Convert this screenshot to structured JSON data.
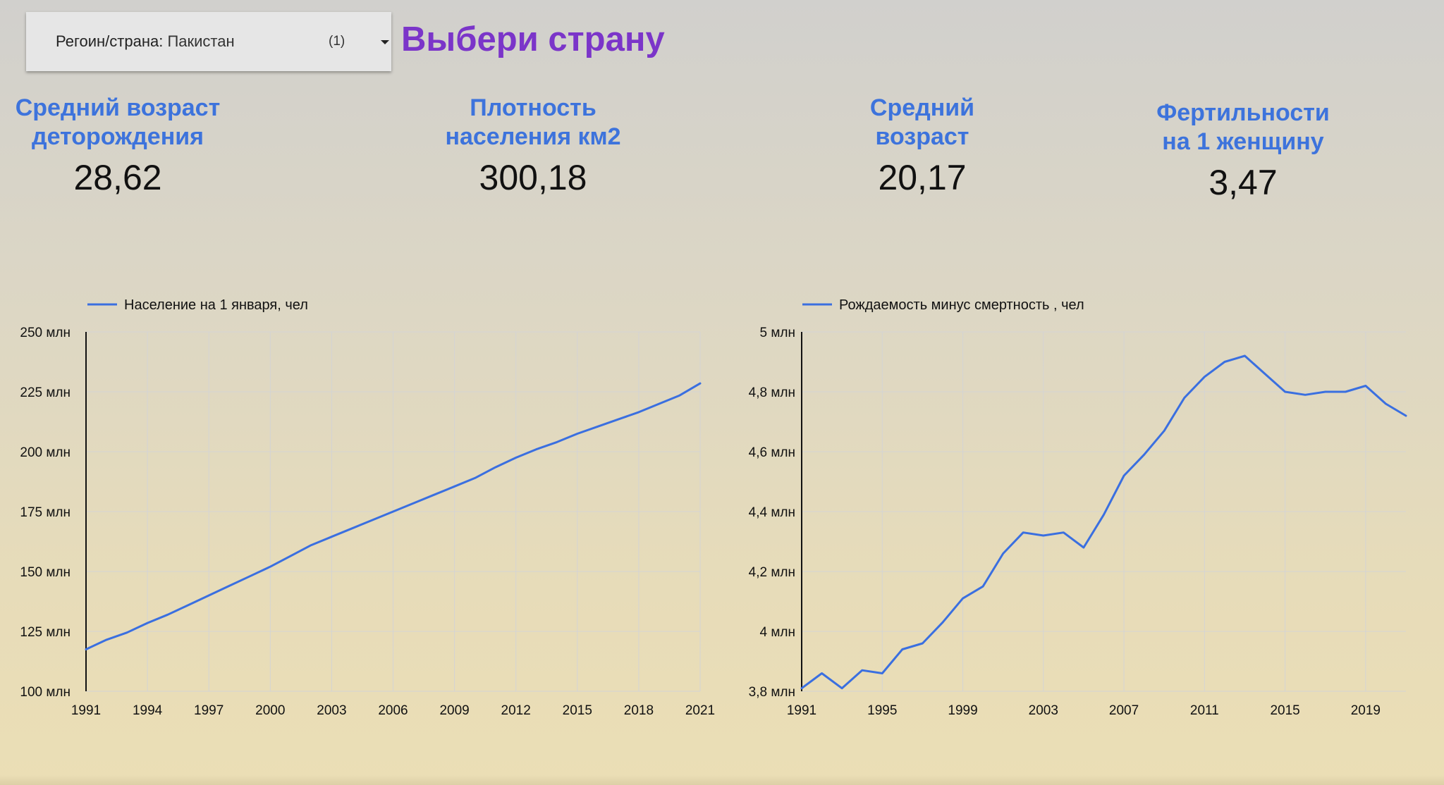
{
  "filter": {
    "label": "Регоин/страна: ",
    "value": "Пакистан",
    "count": "(1)"
  },
  "headline": "Выбери страну",
  "kpis": [
    {
      "title_line1": "Средний возраст",
      "title_line2": "деторождения",
      "value": "28,62"
    },
    {
      "title_line1": "Плотность",
      "title_line2": "населения км2",
      "value": "300,18"
    },
    {
      "title_line1": "Средний",
      "title_line2": "возраст",
      "value": "20,17"
    },
    {
      "title_line1": "Фертильности",
      "title_line2": "на 1 женщину",
      "value": "3,47"
    }
  ],
  "colors": {
    "line": "#3a6fe0",
    "kpi_title": "#3d73dc",
    "headline": "#7b35c9",
    "grid": "#d4d4d4",
    "axis": "#111111"
  },
  "chart_data": [
    {
      "type": "line",
      "series": [
        {
          "name": "Население на 1 января, чел",
          "x": [
            1991,
            1992,
            1993,
            1994,
            1995,
            1996,
            1997,
            1998,
            1999,
            2000,
            2001,
            2002,
            2003,
            2004,
            2005,
            2006,
            2007,
            2008,
            2009,
            2010,
            2011,
            2012,
            2013,
            2014,
            2015,
            2016,
            2017,
            2018,
            2019,
            2020,
            2021
          ],
          "values": [
            117.5,
            121.5,
            124.5,
            128.5,
            132.0,
            136.0,
            140.0,
            144.0,
            148.0,
            152.0,
            156.5,
            161.0,
            164.5,
            168.0,
            171.5,
            175.0,
            178.5,
            182.0,
            185.5,
            189.0,
            193.5,
            197.5,
            201.0,
            204.0,
            207.5,
            210.5,
            213.5,
            216.5,
            220.0,
            223.5,
            228.5
          ]
        }
      ],
      "xticks": [
        "1991",
        "1994",
        "1997",
        "2000",
        "2003",
        "2006",
        "2009",
        "2012",
        "2015",
        "2018",
        "2021"
      ],
      "yticks": [
        "250 млн",
        "225 млн",
        "200 млн",
        "175 млн",
        "150 млн",
        "125 млн",
        "100 млн"
      ],
      "ylim": [
        100,
        250
      ],
      "xlim": [
        1991,
        2021
      ],
      "unit": "млн",
      "grid": true,
      "legend": "top-left"
    },
    {
      "type": "line",
      "series": [
        {
          "name": "Рождаемость минус смертность , чел",
          "x": [
            1991,
            1992,
            1993,
            1994,
            1995,
            1996,
            1997,
            1998,
            1999,
            2000,
            2001,
            2002,
            2003,
            2004,
            2005,
            2006,
            2007,
            2008,
            2009,
            2010,
            2011,
            2012,
            2013,
            2014,
            2015,
            2016,
            2017,
            2018,
            2019,
            2020,
            2021
          ],
          "values": [
            3.81,
            3.86,
            3.81,
            3.87,
            3.86,
            3.94,
            3.96,
            4.03,
            4.11,
            4.15,
            4.26,
            4.33,
            4.32,
            4.33,
            4.28,
            4.39,
            4.52,
            4.59,
            4.67,
            4.78,
            4.85,
            4.9,
            4.92,
            4.86,
            4.8,
            4.79,
            4.8,
            4.8,
            4.82,
            4.76,
            4.72
          ]
        }
      ],
      "xticks": [
        "1991",
        "1995",
        "1999",
        "2003",
        "2007",
        "2011",
        "2015",
        "2019"
      ],
      "yticks": [
        "5 млн",
        "4,8 млн",
        "4,6 млн",
        "4,4 млн",
        "4,2 млн",
        "4 млн",
        "3,8 млн"
      ],
      "ylim": [
        3.8,
        5.0
      ],
      "xlim": [
        1991,
        2021
      ],
      "unit": "млн",
      "grid": true,
      "legend": "top-left"
    }
  ]
}
